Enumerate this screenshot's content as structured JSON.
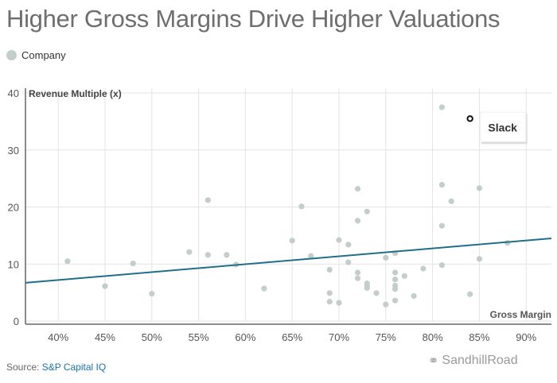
{
  "title": "Higher Gross Margins Drive Higher Valuations",
  "legend": {
    "label": "Company",
    "color": "#c3cdcc"
  },
  "source": {
    "prefix": "Source: ",
    "link": "S&P Capital IQ"
  },
  "watermark": {
    "text": "SandhillRoad",
    "icon": "wechat-icon"
  },
  "chart_data": {
    "type": "scatter",
    "title": "Higher Gross Margins Drive Higher Valuations",
    "xlabel": "Gross Margin",
    "ylabel": "Revenue Multiple (x)",
    "xlim": [
      36.5,
      92.7
    ],
    "ylim": [
      0,
      40
    ],
    "xticks": [
      40,
      45,
      50,
      55,
      60,
      65,
      70,
      75,
      80,
      85,
      90
    ],
    "xtick_labels": [
      "40%",
      "45%",
      "50%",
      "55%",
      "60%",
      "65%",
      "70%",
      "75%",
      "80%",
      "85%",
      "90%"
    ],
    "yticks": [
      0,
      10,
      20,
      30,
      40
    ],
    "ytick_labels": [
      "0",
      "10",
      "20",
      "30",
      "40"
    ],
    "grid": true,
    "legend_position": "top-left",
    "point_color": "#c3cdcc",
    "trend_color": "#1f6f8b",
    "series": [
      {
        "name": "Company",
        "points": [
          [
            41,
            10.5
          ],
          [
            45,
            6.1
          ],
          [
            48,
            10.1
          ],
          [
            50,
            4.8
          ],
          [
            54,
            12.1
          ],
          [
            56,
            21.2
          ],
          [
            56,
            11.6
          ],
          [
            58,
            11.6
          ],
          [
            59,
            9.9
          ],
          [
            62,
            5.7
          ],
          [
            65,
            14.1
          ],
          [
            66,
            20.1
          ],
          [
            67,
            11.4
          ],
          [
            69,
            9.0
          ],
          [
            69,
            4.9
          ],
          [
            69,
            3.4
          ],
          [
            70,
            14.2
          ],
          [
            70,
            3.2
          ],
          [
            71,
            13.4
          ],
          [
            71,
            10.3
          ],
          [
            72,
            23.2
          ],
          [
            72,
            17.6
          ],
          [
            72,
            8.5
          ],
          [
            72,
            7.5
          ],
          [
            73,
            19.2
          ],
          [
            73,
            6.6
          ],
          [
            73,
            6.2
          ],
          [
            73,
            5.8
          ],
          [
            74,
            4.9
          ],
          [
            75,
            11.1
          ],
          [
            75,
            2.9
          ],
          [
            76,
            11.9
          ],
          [
            76,
            8.5
          ],
          [
            76,
            7.3
          ],
          [
            76,
            6.2
          ],
          [
            76,
            5.6
          ],
          [
            76,
            3.6
          ],
          [
            77,
            7.9
          ],
          [
            78,
            4.4
          ],
          [
            79,
            9.2
          ],
          [
            81,
            37.5
          ],
          [
            81,
            23.9
          ],
          [
            81,
            16.7
          ],
          [
            81,
            9.8
          ],
          [
            82,
            21.0
          ],
          [
            84,
            4.7
          ],
          [
            85,
            23.3
          ],
          [
            85,
            10.9
          ],
          [
            88,
            13.7
          ]
        ]
      }
    ],
    "highlight": {
      "label": "Slack",
      "x": 84,
      "y": 35.5
    },
    "trendline": {
      "x": [
        36.5,
        92.7
      ],
      "y": [
        6.7,
        14.5
      ]
    }
  }
}
